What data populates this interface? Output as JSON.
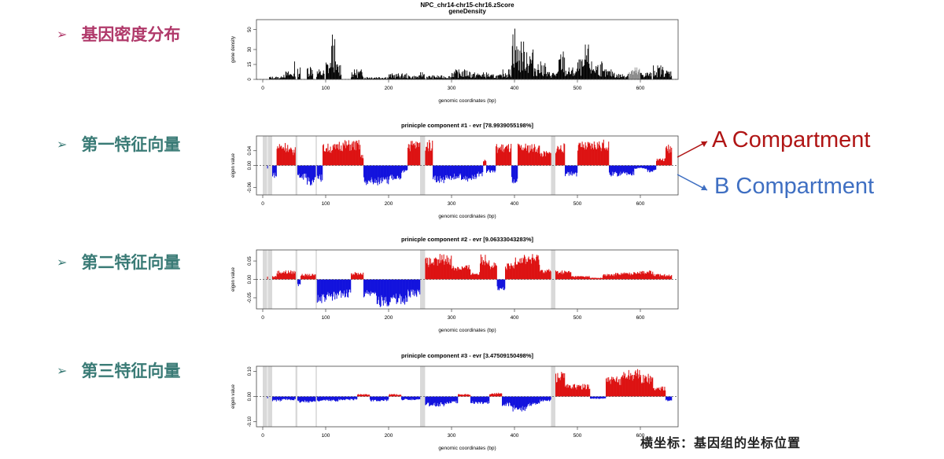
{
  "colors": {
    "pink": "#b0396a",
    "teal": "#3a7b76",
    "red": "#d71a1a",
    "blue": "#1a1ad7",
    "darkred": "#b01515",
    "bblue": "#3f6fc2",
    "gap": "#d9d9d9"
  },
  "labels": {
    "arrow": "➢",
    "density": "基因密度分布",
    "pc1": "第一特征向量",
    "pc2": "第二特征向量",
    "pc3": "第三特征向量"
  },
  "annotations": {
    "a_compartment": "A Compartment",
    "b_compartment": "B Compartment"
  },
  "footer": "横坐标：基因组的坐标位置",
  "chart_data": [
    {
      "id": "density",
      "type": "bar",
      "title": "NPC_chr14-chr15-chr16.zScore",
      "subtitle": "geneDensity",
      "xlabel": "genomic coordinates (bp)",
      "ylabel": "gene density",
      "xlim": [
        -10,
        660
      ],
      "ylim": [
        0,
        60
      ],
      "xticks": [
        0,
        100,
        200,
        300,
        400,
        500,
        600
      ],
      "yticks": [
        0,
        15,
        30,
        50
      ],
      "ytick_labels": [
        "0",
        "15",
        "30",
        "50"
      ],
      "series_color": "#000000",
      "profile": [
        [
          0,
          0,
          1
        ],
        [
          10,
          30,
          3
        ],
        [
          30,
          50,
          8
        ],
        [
          40,
          42,
          14
        ],
        [
          48,
          52,
          18
        ],
        [
          55,
          60,
          12
        ],
        [
          70,
          80,
          16
        ],
        [
          85,
          98,
          10
        ],
        [
          100,
          108,
          20
        ],
        [
          108,
          115,
          45
        ],
        [
          115,
          125,
          18
        ],
        [
          140,
          160,
          10
        ],
        [
          160,
          200,
          3
        ],
        [
          200,
          230,
          6
        ],
        [
          230,
          250,
          4
        ],
        [
          250,
          258,
          8
        ],
        [
          260,
          300,
          4
        ],
        [
          300,
          330,
          10
        ],
        [
          330,
          360,
          7
        ],
        [
          360,
          380,
          5
        ],
        [
          380,
          395,
          10
        ],
        [
          395,
          402,
          57
        ],
        [
          402,
          420,
          38
        ],
        [
          420,
          430,
          30
        ],
        [
          430,
          450,
          18
        ],
        [
          450,
          470,
          8
        ],
        [
          470,
          480,
          28
        ],
        [
          480,
          500,
          12
        ],
        [
          500,
          512,
          20
        ],
        [
          512,
          520,
          35
        ],
        [
          520,
          540,
          18
        ],
        [
          540,
          560,
          10
        ],
        [
          560,
          580,
          6
        ],
        [
          580,
          600,
          12
        ],
        [
          600,
          618,
          8
        ],
        [
          620,
          640,
          14
        ],
        [
          640,
          650,
          10
        ]
      ]
    },
    {
      "id": "pc1",
      "type": "bar",
      "title": "prinicple component #1 - evr [78.9939055198%]",
      "xlabel": "genomic coordinates (bp)",
      "ylabel": "eigen value",
      "xlim": [
        -10,
        660
      ],
      "ylim": [
        -0.08,
        0.08
      ],
      "xticks": [
        0,
        100,
        200,
        300,
        400,
        500,
        600
      ],
      "yticks": [
        -0.06,
        0.0,
        0.04
      ],
      "ytick_labels": [
        "-0.06",
        "0.00",
        "0.04"
      ],
      "pos_color": "#dd1111",
      "neg_color": "#1111dd",
      "gaps": [
        [
          0,
          7
        ],
        [
          8,
          15
        ],
        [
          52,
          55
        ],
        [
          84,
          86
        ],
        [
          250,
          258
        ],
        [
          458,
          465
        ]
      ],
      "profile": [
        [
          0,
          8,
          -0.01
        ],
        [
          15,
          22,
          -0.035
        ],
        [
          22,
          40,
          0.065
        ],
        [
          40,
          52,
          0.05
        ],
        [
          55,
          70,
          -0.04
        ],
        [
          70,
          84,
          -0.055
        ],
        [
          86,
          95,
          -0.045
        ],
        [
          95,
          118,
          0.06
        ],
        [
          118,
          155,
          0.07
        ],
        [
          155,
          160,
          0.03
        ],
        [
          160,
          200,
          -0.055
        ],
        [
          200,
          220,
          -0.04
        ],
        [
          220,
          230,
          -0.02
        ],
        [
          230,
          250,
          0.07
        ],
        [
          258,
          270,
          0.07
        ],
        [
          270,
          290,
          -0.05
        ],
        [
          290,
          320,
          -0.04
        ],
        [
          320,
          340,
          -0.045
        ],
        [
          340,
          350,
          -0.03
        ],
        [
          350,
          355,
          0.02
        ],
        [
          355,
          370,
          -0.02
        ],
        [
          370,
          395,
          0.06
        ],
        [
          395,
          405,
          -0.05
        ],
        [
          405,
          440,
          0.06
        ],
        [
          440,
          458,
          0.04
        ],
        [
          465,
          480,
          0.06
        ],
        [
          480,
          500,
          -0.03
        ],
        [
          500,
          525,
          0.065
        ],
        [
          525,
          550,
          0.07
        ],
        [
          550,
          590,
          -0.03
        ],
        [
          590,
          610,
          -0.01
        ],
        [
          610,
          625,
          -0.02
        ],
        [
          625,
          640,
          0.02
        ],
        [
          640,
          650,
          0.06
        ]
      ]
    },
    {
      "id": "pc2",
      "type": "bar",
      "title": "prinicple component #2 - evr [9.06333043283%]",
      "xlabel": "genomic coordinates (bp)",
      "ylabel": "eigen value",
      "xlim": [
        -10,
        660
      ],
      "ylim": [
        -0.08,
        0.08
      ],
      "xticks": [
        0,
        100,
        200,
        300,
        400,
        500,
        600
      ],
      "yticks": [
        -0.05,
        0.0,
        0.05
      ],
      "ytick_labels": [
        "-0.05",
        "0.00",
        "0.05"
      ],
      "pos_color": "#dd1111",
      "neg_color": "#1111dd",
      "gaps": [
        [
          0,
          7
        ],
        [
          8,
          15
        ],
        [
          52,
          55
        ],
        [
          84,
          86
        ],
        [
          250,
          258
        ],
        [
          458,
          465
        ]
      ],
      "profile": [
        [
          0,
          8,
          0.01
        ],
        [
          15,
          22,
          0.01
        ],
        [
          22,
          52,
          0.025
        ],
        [
          55,
          60,
          -0.02
        ],
        [
          60,
          84,
          0.015
        ],
        [
          86,
          100,
          -0.07
        ],
        [
          100,
          120,
          -0.06
        ],
        [
          120,
          140,
          -0.05
        ],
        [
          130,
          160,
          0.02
        ],
        [
          160,
          180,
          -0.05
        ],
        [
          180,
          200,
          -0.075
        ],
        [
          200,
          230,
          -0.07
        ],
        [
          230,
          250,
          -0.05
        ],
        [
          258,
          280,
          0.06
        ],
        [
          280,
          300,
          0.07
        ],
        [
          300,
          330,
          0.04
        ],
        [
          330,
          345,
          0.02
        ],
        [
          345,
          360,
          0.07
        ],
        [
          360,
          372,
          0.05
        ],
        [
          372,
          385,
          -0.03
        ],
        [
          385,
          400,
          0.045
        ],
        [
          400,
          440,
          0.07
        ],
        [
          440,
          458,
          0.03
        ],
        [
          465,
          490,
          0.025
        ],
        [
          490,
          520,
          0.01
        ],
        [
          520,
          540,
          0.005
        ],
        [
          540,
          560,
          0.015
        ],
        [
          560,
          590,
          0.02
        ],
        [
          590,
          620,
          0.025
        ],
        [
          620,
          650,
          0.015
        ]
      ]
    },
    {
      "id": "pc3",
      "type": "bar",
      "title": "prinicple component #3 - evr [3.47509150498%]",
      "xlabel": "genomic coordinates (bp)",
      "ylabel": "eigen value",
      "xlim": [
        -10,
        660
      ],
      "ylim": [
        -0.12,
        0.12
      ],
      "xticks": [
        0,
        100,
        200,
        300,
        400,
        500,
        600
      ],
      "yticks": [
        -0.1,
        0.0,
        0.1
      ],
      "ytick_labels": [
        "-0.10",
        "0.00",
        "0.10"
      ],
      "pos_color": "#dd1111",
      "neg_color": "#1111dd",
      "gaps": [
        [
          0,
          7
        ],
        [
          8,
          15
        ],
        [
          52,
          55
        ],
        [
          84,
          86
        ],
        [
          250,
          258
        ],
        [
          458,
          465
        ]
      ],
      "profile": [
        [
          0,
          8,
          -0.01
        ],
        [
          15,
          30,
          -0.02
        ],
        [
          30,
          52,
          -0.015
        ],
        [
          55,
          84,
          -0.025
        ],
        [
          86,
          120,
          -0.02
        ],
        [
          120,
          150,
          -0.015
        ],
        [
          150,
          170,
          0.01
        ],
        [
          170,
          200,
          -0.02
        ],
        [
          200,
          220,
          0.01
        ],
        [
          220,
          250,
          -0.015
        ],
        [
          258,
          290,
          -0.04
        ],
        [
          290,
          310,
          -0.03
        ],
        [
          310,
          330,
          0.01
        ],
        [
          330,
          360,
          -0.03
        ],
        [
          360,
          380,
          0.015
        ],
        [
          380,
          395,
          -0.04
        ],
        [
          395,
          420,
          -0.06
        ],
        [
          420,
          440,
          -0.04
        ],
        [
          440,
          458,
          -0.02
        ],
        [
          465,
          480,
          0.1
        ],
        [
          480,
          520,
          0.05
        ],
        [
          520,
          545,
          -0.01
        ],
        [
          545,
          570,
          0.08
        ],
        [
          570,
          600,
          0.11
        ],
        [
          600,
          620,
          0.09
        ],
        [
          620,
          640,
          0.04
        ],
        [
          640,
          650,
          -0.02
        ]
      ]
    }
  ]
}
